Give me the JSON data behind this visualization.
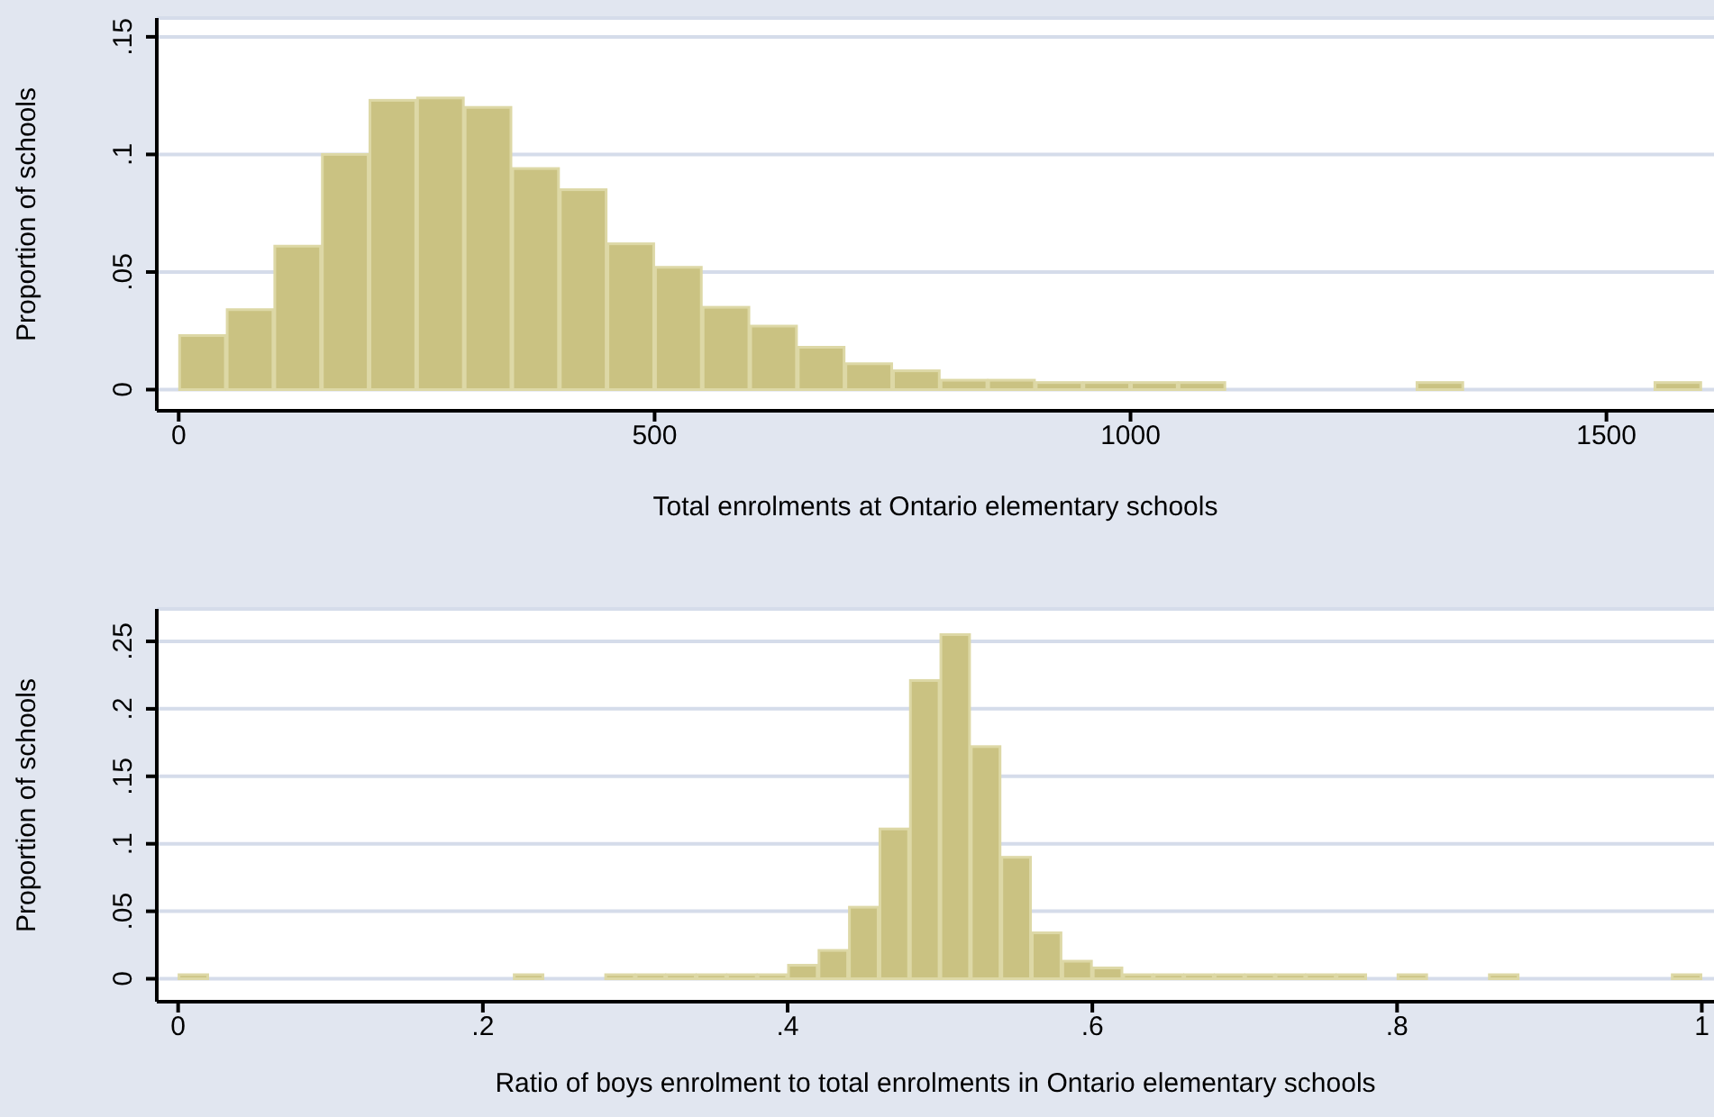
{
  "chart_data": [
    {
      "type": "histogram",
      "xlabel": "Total enrolments at Ontario elementary schools",
      "ylabel": "Proportion of schools",
      "color": "#cac282",
      "bins": [
        0,
        50,
        100,
        150,
        200,
        250,
        300,
        350,
        400,
        450,
        500,
        550,
        600,
        650,
        700,
        750,
        800,
        850,
        900,
        950,
        1000,
        1050,
        1100,
        1150,
        1200,
        1250,
        1300,
        1350,
        1400,
        1450,
        1500,
        1550,
        1600
      ],
      "values": [
        0.023,
        0.034,
        0.061,
        0.1,
        0.123,
        0.124,
        0.12,
        0.094,
        0.085,
        0.062,
        0.052,
        0.035,
        0.027,
        0.018,
        0.011,
        0.008,
        0.004,
        0.004,
        0.003,
        0.003,
        0.003,
        0.003,
        0,
        0,
        0,
        0,
        0.003,
        0,
        0,
        0,
        0,
        0.003
      ],
      "xlim": [
        -23,
        1613
      ],
      "xticks": [
        0,
        500,
        1000,
        1500
      ],
      "ylim": [
        -0.009,
        0.158
      ],
      "yticks": [
        0,
        {
          "value": 0.05,
          "label": ".05"
        },
        {
          "value": 0.1,
          "label": ".1"
        },
        {
          "value": 0.15,
          "label": ".15"
        }
      ],
      "grid": "y"
    },
    {
      "type": "histogram",
      "xlabel": "Ratio of boys enrolment to total enrolments in Ontario elementary schools",
      "ylabel": "Proportion of schools",
      "color": "#cac282",
      "bins": [
        0,
        0.02,
        0.04,
        0.06,
        0.08,
        0.1,
        0.12,
        0.14,
        0.16,
        0.18,
        0.2,
        0.22,
        0.24,
        0.26,
        0.28,
        0.3,
        0.32,
        0.34,
        0.36,
        0.38,
        0.4,
        0.42,
        0.44,
        0.46,
        0.48,
        0.5,
        0.52,
        0.54,
        0.56,
        0.58,
        0.6,
        0.62,
        0.64,
        0.66,
        0.68,
        0.7,
        0.72,
        0.74,
        0.76,
        0.78,
        0.8,
        0.82,
        0.84,
        0.86,
        0.88,
        0.9,
        0.92,
        0.94,
        0.96,
        0.98,
        1
      ],
      "values": [
        0.003,
        0,
        0,
        0,
        0,
        0,
        0,
        0,
        0,
        0,
        0,
        0.003,
        0,
        0,
        0.003,
        0.003,
        0.003,
        0.003,
        0.003,
        0.003,
        0.01,
        0.021,
        0.053,
        0.111,
        0.221,
        0.255,
        0.172,
        0.09,
        0.034,
        0.013,
        0.008,
        0.003,
        0.003,
        0.003,
        0.003,
        0.003,
        0.003,
        0.003,
        0.003,
        0,
        0.003,
        0,
        0,
        0.003,
        0,
        0,
        0,
        0,
        0,
        0.003
      ],
      "xlim": [
        -0.014,
        1.008
      ],
      "xticks": [
        0,
        {
          "value": 0.2,
          "label": ".2"
        },
        {
          "value": 0.4,
          "label": ".4"
        },
        {
          "value": 0.6,
          "label": ".6"
        },
        {
          "value": 0.8,
          "label": ".8"
        },
        1
      ],
      "ylim": [
        -0.017,
        0.274
      ],
      "yticks": [
        0,
        {
          "value": 0.05,
          "label": ".05"
        },
        {
          "value": 0.1,
          "label": ".1"
        },
        {
          "value": 0.15,
          "label": ".15"
        },
        {
          "value": 0.2,
          "label": ".2"
        },
        {
          "value": 0.25,
          "label": ".25"
        }
      ],
      "grid": "y"
    }
  ]
}
